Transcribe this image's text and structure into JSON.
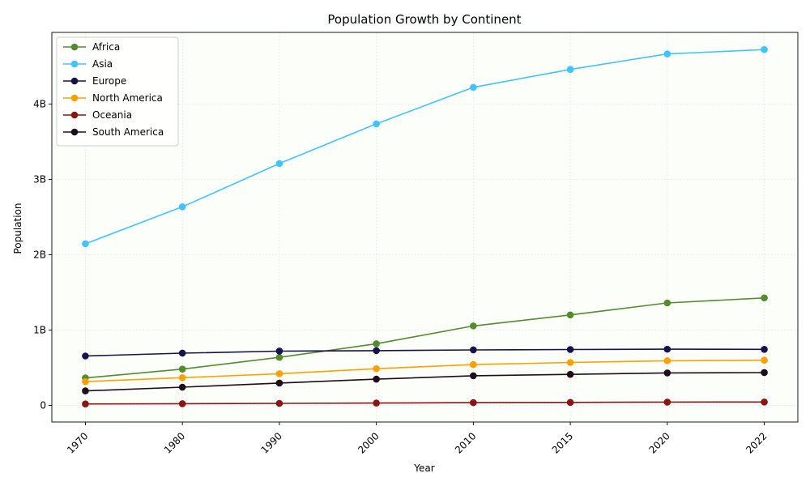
{
  "chart_data": {
    "type": "line",
    "title": "Population Growth by Continent",
    "xlabel": "Year",
    "ylabel": "Population",
    "x": [
      "1970",
      "1980",
      "1990",
      "2000",
      "2010",
      "2015",
      "2020",
      "2022"
    ],
    "ylim": [
      -220000000,
      4950000000
    ],
    "yticks": [
      0,
      1000000000,
      2000000000,
      3000000000,
      4000000000
    ],
    "ytick_labels": [
      "0",
      "1B",
      "2B",
      "3B",
      "4B"
    ],
    "grid": true,
    "legend_position": "top-left",
    "series": [
      {
        "name": "Africa",
        "color": "#558b2f",
        "values": [
          365000000,
          482000000,
          638000000,
          818000000,
          1055000000,
          1201000000,
          1360000000,
          1427000000
        ]
      },
      {
        "name": "Asia",
        "color": "#40c4ff",
        "values": [
          2145000000,
          2636000000,
          3210000000,
          3736000000,
          4221000000,
          4459000000,
          4664000000,
          4722000000
        ]
      },
      {
        "name": "Europe",
        "color": "#16124a",
        "values": [
          656000000,
          694000000,
          721000000,
          727000000,
          737000000,
          742000000,
          746000000,
          744000000
        ]
      },
      {
        "name": "North America",
        "color": "#ffa000",
        "values": [
          316000000,
          368000000,
          421000000,
          487000000,
          542000000,
          570000000,
          593000000,
          600000000
        ]
      },
      {
        "name": "Oceania",
        "color": "#8b1512",
        "values": [
          19700000,
          22900000,
          27000000,
          31400000,
          37100000,
          40400000,
          43900000,
          45000000
        ]
      },
      {
        "name": "South America",
        "color": "#1f0d17",
        "values": [
          193000000,
          242000000,
          297000000,
          349000000,
          394000000,
          412000000,
          431000000,
          436000000
        ]
      }
    ]
  }
}
